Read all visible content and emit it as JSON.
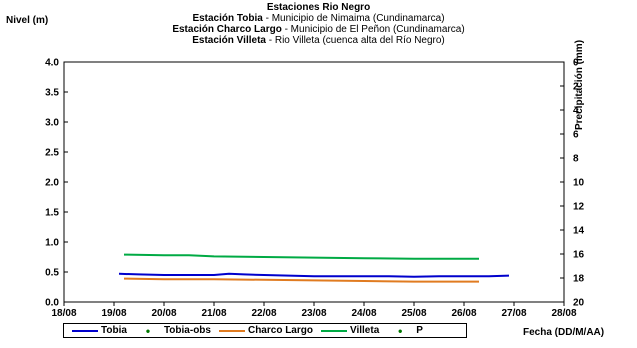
{
  "header": {
    "title": "Estaciones Rio Negro",
    "stations": [
      {
        "name": "Estación Tobia",
        "desc": " - Municipio de Nimaima (Cundinamarca)"
      },
      {
        "name": "Estación Charco Largo",
        "desc": " - Municipio de El Peñon (Cundinamarca)"
      },
      {
        "name": "Estación Villeta",
        "desc": " - Rio Villeta (cuenca alta del Río Negro)"
      }
    ]
  },
  "chart_data": {
    "type": "line",
    "title": "Estaciones Rio Negro",
    "ylabel": "Nivel (m)",
    "ylabel_right": "Precipitación (mm)",
    "xlabel": "Fecha (DD/M/AA)",
    "ylim": [
      0,
      4
    ],
    "yticks": [
      "0.0",
      "0.5",
      "1.0",
      "1.5",
      "2.0",
      "2.5",
      "3.0",
      "3.5",
      "4.0"
    ],
    "ylim_right": [
      20,
      0
    ],
    "yticks_right": [
      "0",
      "2",
      "4",
      "6",
      "8",
      "10",
      "12",
      "14",
      "16",
      "18",
      "20"
    ],
    "x_range": [
      18,
      28
    ],
    "xticks": [
      "18/08",
      "19/08",
      "20/08",
      "21/08",
      "22/08",
      "23/08",
      "24/08",
      "25/08",
      "26/08",
      "27/08",
      "28/08"
    ],
    "grid": false,
    "legend_position": "bottom",
    "series": [
      {
        "name": "Tobia",
        "color": "#0000cc",
        "x": [
          19.1,
          19.5,
          20.0,
          20.5,
          21.0,
          21.3,
          21.6,
          22.0,
          22.5,
          23.0,
          23.5,
          24.0,
          24.5,
          25.0,
          25.5,
          26.0,
          26.5,
          26.9
        ],
        "y": [
          0.47,
          0.46,
          0.45,
          0.45,
          0.45,
          0.47,
          0.46,
          0.45,
          0.44,
          0.43,
          0.43,
          0.43,
          0.43,
          0.42,
          0.43,
          0.43,
          0.43,
          0.44
        ]
      },
      {
        "name": "Tobia-obs",
        "color": "#007700",
        "x": [],
        "y": []
      },
      {
        "name": "Charco Largo",
        "color": "#e07b20",
        "x": [
          19.2,
          20.0,
          21.0,
          22.0,
          23.0,
          24.0,
          25.0,
          26.3
        ],
        "y": [
          0.39,
          0.38,
          0.38,
          0.37,
          0.36,
          0.35,
          0.34,
          0.34
        ]
      },
      {
        "name": "Villeta",
        "color": "#00aa44",
        "x": [
          19.2,
          20.0,
          20.5,
          21.0,
          22.0,
          23.0,
          24.0,
          25.0,
          26.3
        ],
        "y": [
          0.79,
          0.78,
          0.78,
          0.76,
          0.75,
          0.74,
          0.73,
          0.72,
          0.72
        ]
      },
      {
        "name": "P",
        "color": "#007700",
        "x": [],
        "y": []
      }
    ]
  }
}
